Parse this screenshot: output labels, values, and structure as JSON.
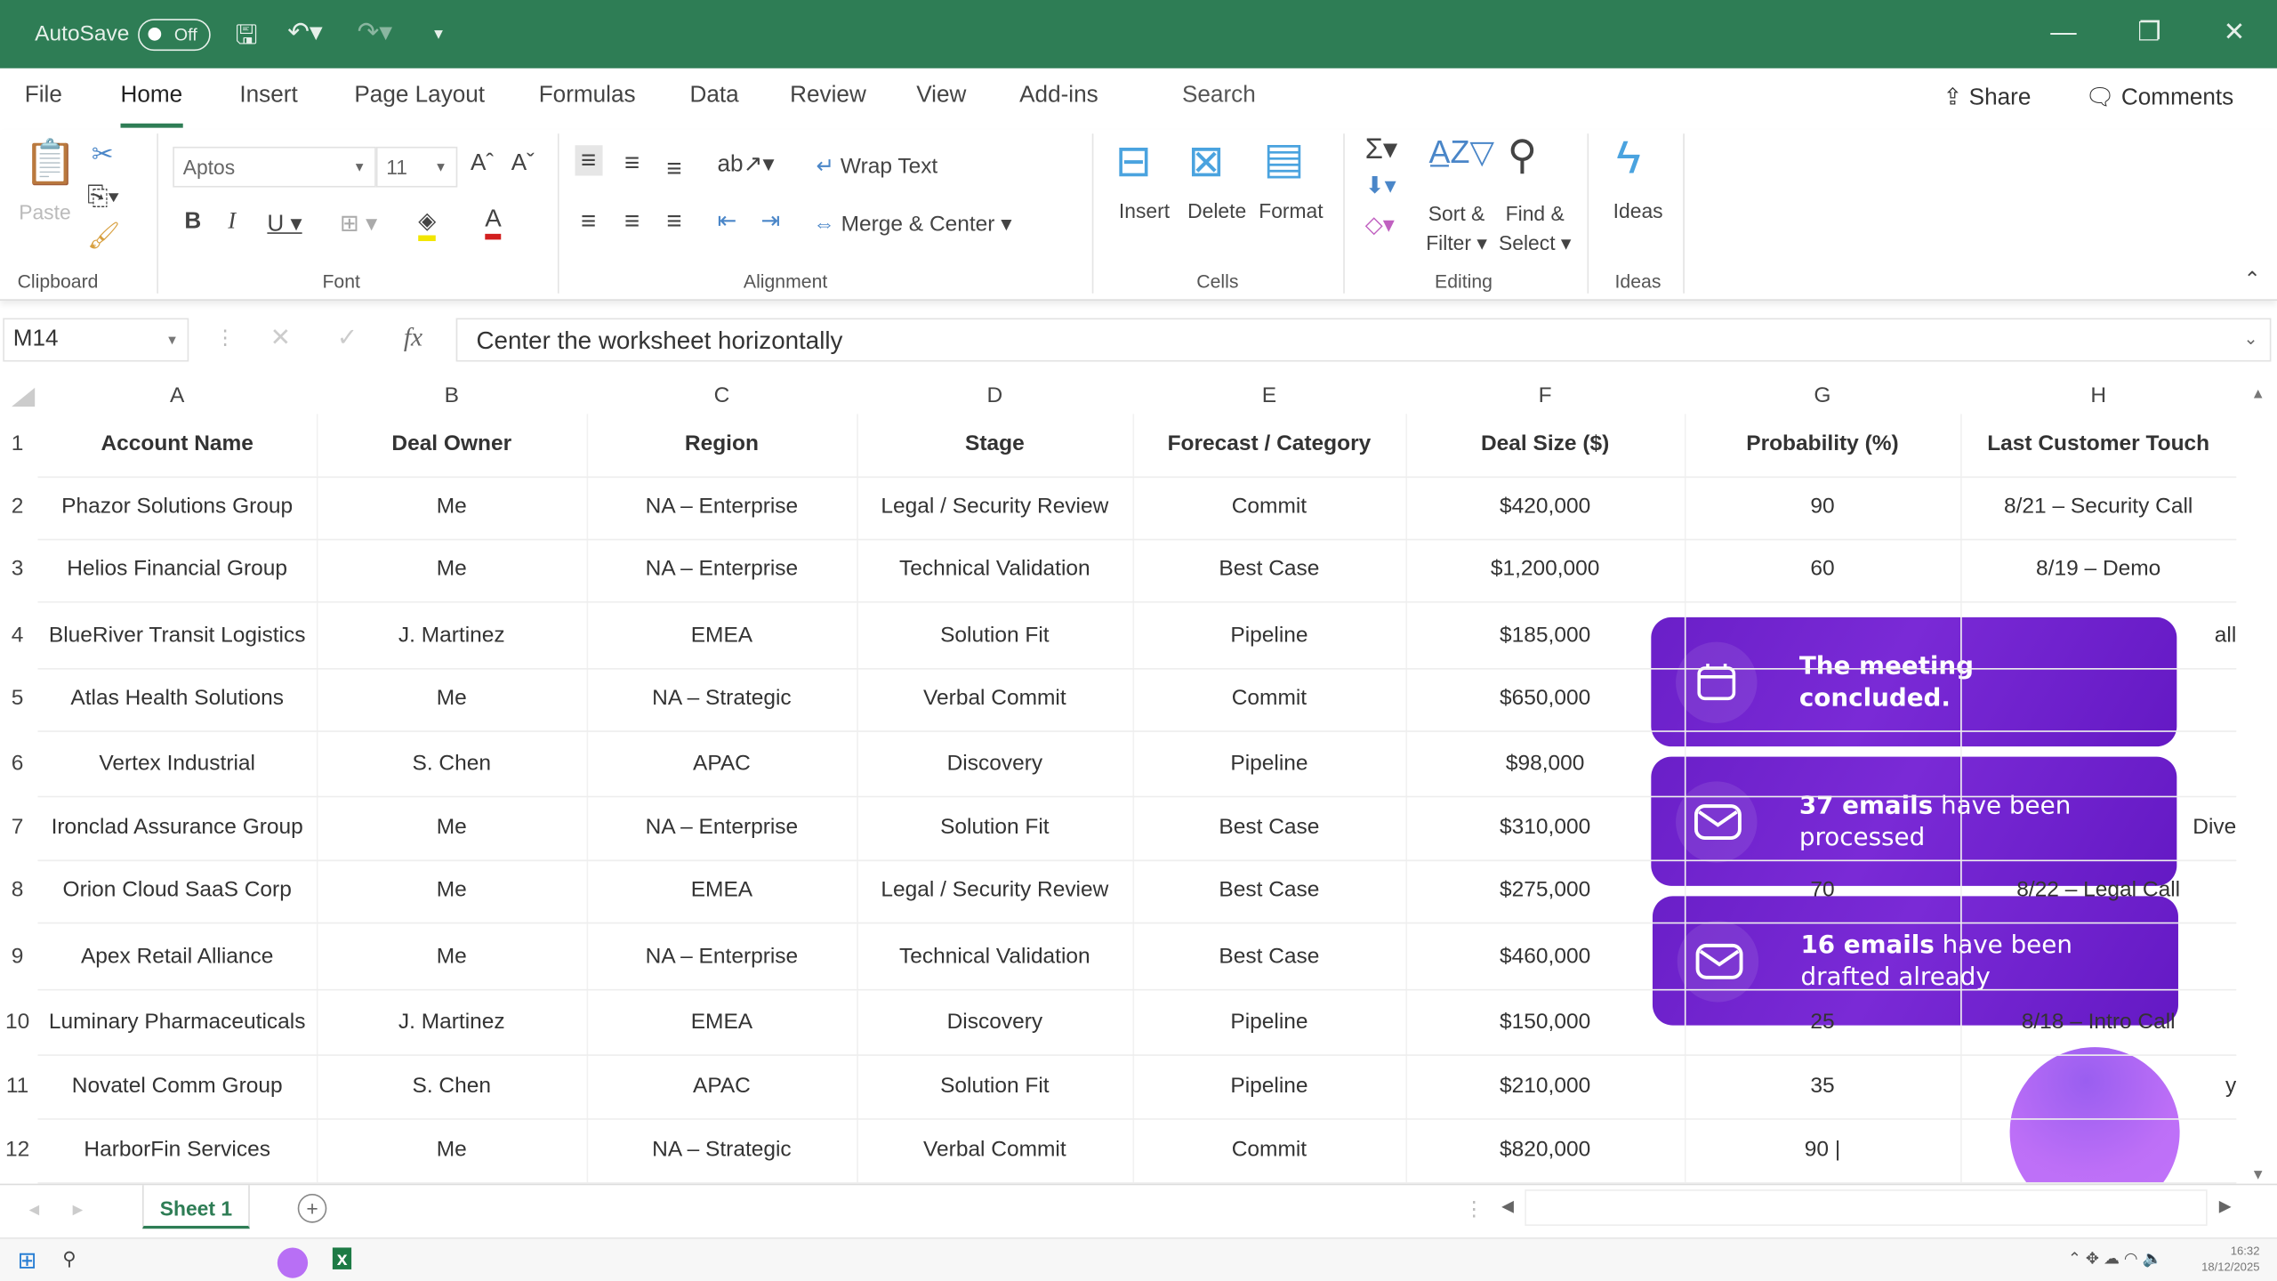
{
  "titlebar": {
    "autosave_label": "AutoSave",
    "autosave_state": "Off",
    "accent": "#2e7d55"
  },
  "tabs": [
    "File",
    "Home",
    "Insert",
    "Page Layout",
    "Formulas",
    "Data",
    "Review",
    "View",
    "Add-ins"
  ],
  "search_label": "Search",
  "share_label": "Share",
  "comments_label": "Comments",
  "ribbon": {
    "paste": "Paste",
    "font_name": "Aptos",
    "font_size": "11",
    "wrap_text": "Wrap Text",
    "merge_center": "Merge & Center",
    "insert": "Insert",
    "delete": "Delete",
    "format": "Format",
    "sort_filter_1": "Sort &",
    "sort_filter_2": "Filter",
    "find_select_1": "Find &",
    "find_select_2": "Select",
    "ideas": "Ideas",
    "groups": {
      "clipboard": "Clipboard",
      "font": "Font",
      "alignment": "Alignment",
      "cells": "Cells",
      "editing": "Editing",
      "ideas": "Ideas"
    }
  },
  "formula_bar": {
    "name_box": "M14",
    "fx": "fx",
    "content": "Center the worksheet horizontally"
  },
  "columns": [
    "A",
    "B",
    "C",
    "D",
    "E",
    "F",
    "G",
    "H"
  ],
  "sheet": {
    "headers": [
      "Account Name",
      "Deal Owner",
      "Region",
      "Stage",
      "Forecast / Category",
      "Deal Size ($)",
      "Probability (%)",
      "Last Customer Touch"
    ],
    "rows": [
      [
        "Phazor Solutions Group",
        "Me",
        "NA – Enterprise",
        "Legal / Security Review",
        "Commit",
        "$420,000",
        "90",
        "8/21  – Security Call"
      ],
      [
        "Helios Financial Group",
        "Me",
        "NA – Enterprise",
        "Technical Validation",
        "Best Case",
        "$1,200,000",
        "60",
        "8/19 – Demo"
      ],
      [
        "BlueRiver Transit Logistics",
        "J. Martinez",
        "EMEA",
        "Solution Fit",
        "Pipeline",
        "$185,000",
        "",
        "all"
      ],
      [
        "Atlas Health Solutions",
        "Me",
        "NA – Strategic",
        "Verbal Commit",
        "Commit",
        "$650,000",
        "",
        ""
      ],
      [
        "Vertex Industrial",
        "S. Chen",
        "APAC",
        "Discovery",
        "Pipeline",
        "$98,000",
        "",
        ""
      ],
      [
        "Ironclad Assurance Group",
        "Me",
        "NA – Enterprise",
        "Solution Fit",
        "Best Case",
        "$310,000",
        "",
        "Dive"
      ],
      [
        "Orion Cloud SaaS Corp",
        "Me",
        "EMEA",
        "Legal / Security Review",
        "Best Case",
        "$275,000",
        "70",
        "8/22 – Legal Call"
      ],
      [
        "Apex Retail Alliance",
        "Me",
        "NA – Enterprise",
        "Technical Validation",
        "Best Case",
        "$460,000",
        "",
        ""
      ],
      [
        "Luminary Pharmaceuticals",
        "J. Martinez",
        "EMEA",
        "Discovery",
        "Pipeline",
        "$150,000",
        "25",
        "8/18 – Intro Call"
      ],
      [
        "Novatel Comm Group",
        "S. Chen",
        "APAC",
        "Solution Fit",
        "Pipeline",
        "$210,000",
        "35",
        "y"
      ],
      [
        "HarborFin Services",
        "Me",
        "NA – Strategic",
        "Verbal Commit",
        "Commit",
        "$820,000",
        "90 |",
        ""
      ]
    ]
  },
  "toasts": [
    {
      "icon": "calendar-icon",
      "bold": "The meeting concluded.",
      "rest": ""
    },
    {
      "icon": "mail-icon",
      "bold": "37 emails",
      "rest": " have been processed"
    },
    {
      "icon": "mail-icon",
      "bold": "16 emails",
      "rest": " have been drafted already"
    }
  ],
  "toast_color": "#6a1fc8",
  "sheet_tab": "Sheet 1",
  "taskbar": {
    "time": "16:32",
    "date": "18/12/2025"
  }
}
